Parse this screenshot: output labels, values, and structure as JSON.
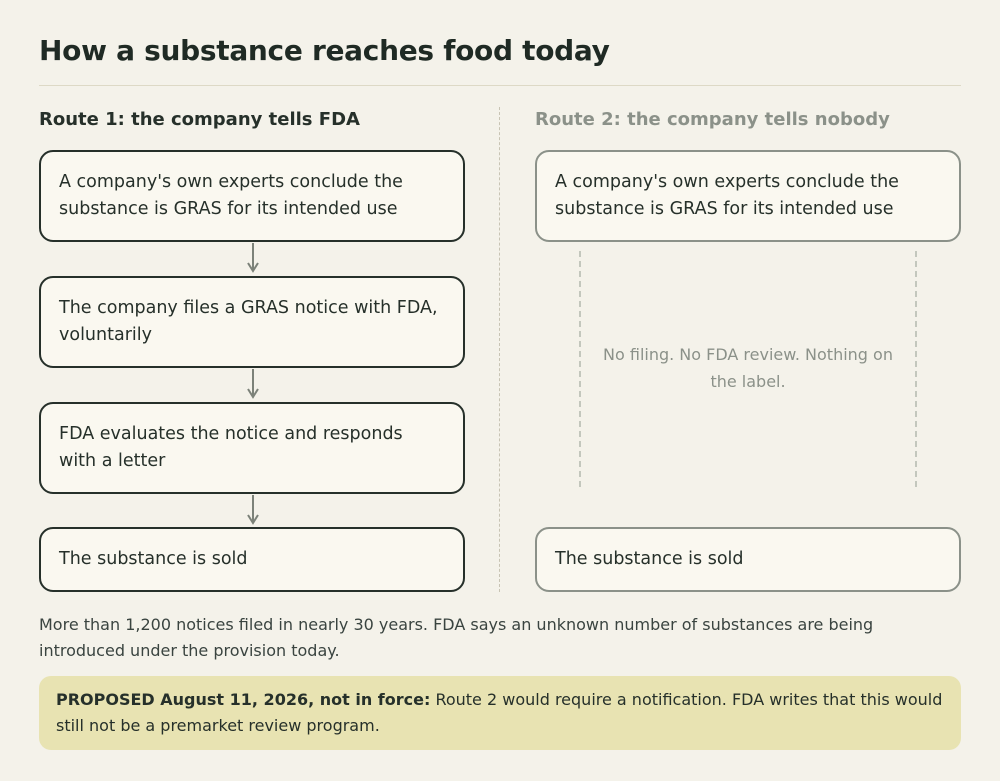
{
  "title": "How a substance reaches food today",
  "route1": {
    "heading": "Route 1: the company tells FDA",
    "steps": [
      "A company's own experts conclude the substance is GRAS for its intended use",
      "The company files a GRAS notice with FDA, voluntarily",
      "FDA evaluates the notice and responds with a letter",
      "The substance is sold"
    ]
  },
  "route2": {
    "heading": "Route 2: the company tells nobody",
    "steps": [
      "A company's own experts conclude the substance is GRAS for its intended use",
      "The substance is sold"
    ],
    "gap_note": "No filing. No FDA review. Nothing on the label."
  },
  "footnote": "More than 1,200 notices filed in nearly 30 years. FDA says an unknown number of substances are being introduced under the provision today.",
  "proposed": {
    "label": "PROPOSED August 11, 2026, not in force:",
    "text": " Route 2 would require a notification. FDA writes that this would still not be a premarket review program."
  },
  "icons": [
    "arrow-down-icon"
  ],
  "colors": {
    "background": "#f4f2ea",
    "box_fill": "#faf8f0",
    "dark_border": "#26302a",
    "muted_border": "#8b9189",
    "proposed_fill": "#e8e3b2"
  }
}
